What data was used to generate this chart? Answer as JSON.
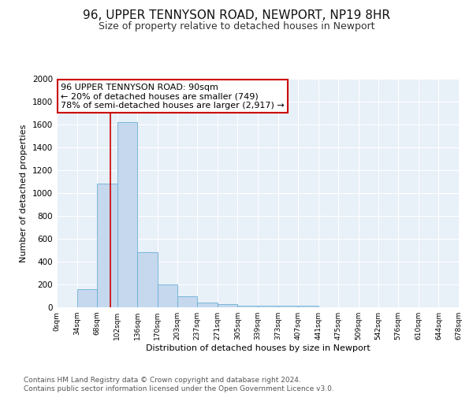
{
  "title": "96, UPPER TENNYSON ROAD, NEWPORT, NP19 8HR",
  "subtitle": "Size of property relative to detached houses in Newport",
  "xlabel": "Distribution of detached houses by size in Newport",
  "ylabel": "Number of detached properties",
  "bar_color": "#c5d8ed",
  "bar_edge_color": "#6aafd6",
  "background_color": "#e8f0f8",
  "grid_color": "#ffffff",
  "bins": [
    0,
    34,
    68,
    102,
    136,
    170,
    203,
    237,
    271,
    305,
    339,
    373,
    407,
    441,
    475,
    509,
    542,
    576,
    610,
    644,
    678
  ],
  "heights": [
    0,
    160,
    1080,
    1620,
    480,
    200,
    100,
    40,
    25,
    15,
    15,
    15,
    15,
    0,
    0,
    0,
    0,
    0,
    0,
    0
  ],
  "tick_labels": [
    "0sqm",
    "34sqm",
    "68sqm",
    "102sqm",
    "136sqm",
    "170sqm",
    "203sqm",
    "237sqm",
    "271sqm",
    "305sqm",
    "339sqm",
    "373sqm",
    "407sqm",
    "441sqm",
    "475sqm",
    "509sqm",
    "542sqm",
    "576sqm",
    "610sqm",
    "644sqm",
    "678sqm"
  ],
  "ylim": [
    0,
    2000
  ],
  "yticks": [
    0,
    200,
    400,
    600,
    800,
    1000,
    1200,
    1400,
    1600,
    1800,
    2000
  ],
  "vline_x": 90,
  "vline_color": "#cc0000",
  "annotation_text": "96 UPPER TENNYSON ROAD: 90sqm\n← 20% of detached houses are smaller (749)\n78% of semi-detached houses are larger (2,917) →",
  "annotation_box_color": "#cc0000",
  "footer_line1": "Contains HM Land Registry data © Crown copyright and database right 2024.",
  "footer_line2": "Contains public sector information licensed under the Open Government Licence v3.0.",
  "title_fontsize": 11,
  "subtitle_fontsize": 9,
  "annotation_fontsize": 8,
  "footer_fontsize": 6.5
}
